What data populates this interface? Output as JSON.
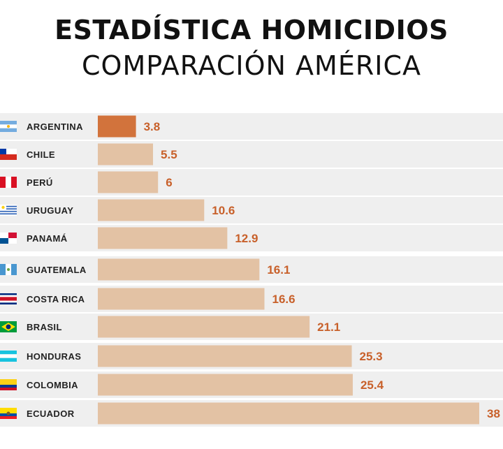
{
  "title": "ESTADÍSTICA HOMICIDIOS",
  "subtitle": "COMPARACIÓN AMÉRICA",
  "chart_data": {
    "type": "bar",
    "orientation": "horizontal",
    "title": "ESTADÍSTICA HOMICIDIOS",
    "subtitle": "COMPARACIÓN AMÉRICA",
    "categories": [
      "ARGENTINA",
      "CHILE",
      "PERÚ",
      "URUGUAY",
      "PANAMÁ",
      "GUATEMALA",
      "COSTA RICA",
      "BRASIL",
      "HONDURAS",
      "COLOMBIA",
      "ECUADOR"
    ],
    "values": [
      3.8,
      5.5,
      6,
      10.6,
      12.9,
      16.1,
      16.6,
      21.1,
      25.3,
      25.4,
      38
    ],
    "value_labels": [
      "3.8",
      "5.5",
      "6",
      "10.6",
      "12.9",
      "16.1",
      "16.6",
      "21.1",
      "25.3",
      "25.4",
      "38"
    ],
    "highlight_index": 0,
    "flag_icons": [
      "argentina-flag-icon",
      "chile-flag-icon",
      "peru-flag-icon",
      "uruguay-flag-icon",
      "panama-flag-icon",
      "guatemala-flag-icon",
      "costa-rica-flag-icon",
      "brasil-flag-icon",
      "honduras-flag-icon",
      "colombia-flag-icon",
      "ecuador-flag-icon"
    ],
    "colors": {
      "bar": "#e3c2a4",
      "bar_highlight": "#d2733c",
      "value_label": "#c8602a",
      "row_background": "#efefef"
    },
    "grid": false,
    "legend": "none"
  }
}
